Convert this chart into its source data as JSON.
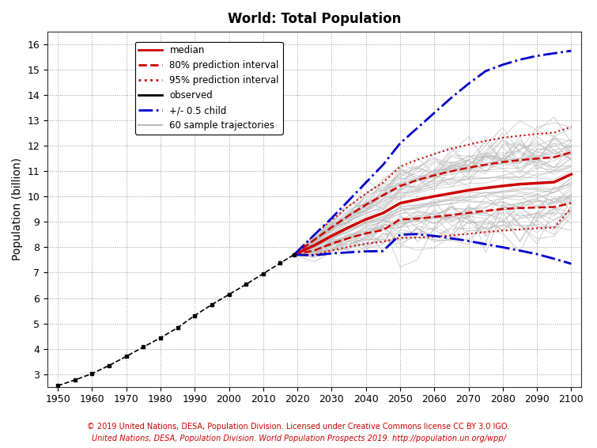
{
  "title": "World: Total Population",
  "ylabel": "Population (billion)",
  "xlim": [
    1947,
    2103
  ],
  "ylim": [
    2.5,
    16.5
  ],
  "yticks": [
    3,
    4,
    5,
    6,
    7,
    8,
    9,
    10,
    11,
    12,
    13,
    14,
    15,
    16
  ],
  "xticks": [
    1950,
    1960,
    1970,
    1980,
    1990,
    2000,
    2010,
    2020,
    2030,
    2040,
    2050,
    2060,
    2070,
    2080,
    2090,
    2100
  ],
  "observed_years": [
    1950,
    1955,
    1960,
    1965,
    1970,
    1975,
    1980,
    1985,
    1990,
    1995,
    2000,
    2005,
    2010,
    2015,
    2019
  ],
  "observed_pop": [
    2.54,
    2.77,
    3.02,
    3.34,
    3.7,
    4.07,
    4.43,
    4.83,
    5.31,
    5.74,
    6.14,
    6.54,
    6.96,
    7.38,
    7.71
  ],
  "proj_years": [
    2019,
    2025,
    2030,
    2035,
    2040,
    2045,
    2050,
    2055,
    2060,
    2065,
    2070,
    2075,
    2080,
    2085,
    2090,
    2095,
    2100
  ],
  "median_pop": [
    7.71,
    8.08,
    8.45,
    8.79,
    9.1,
    9.35,
    9.74,
    9.88,
    10.01,
    10.13,
    10.25,
    10.34,
    10.42,
    10.49,
    10.53,
    10.57,
    10.88
  ],
  "pi80_upper_pop": [
    7.71,
    8.3,
    8.79,
    9.25,
    9.68,
    10.05,
    10.42,
    10.65,
    10.84,
    11.0,
    11.14,
    11.26,
    11.36,
    11.44,
    11.5,
    11.55,
    11.75
  ],
  "pi80_lower_pop": [
    7.71,
    7.88,
    8.14,
    8.36,
    8.55,
    8.68,
    9.1,
    9.13,
    9.2,
    9.27,
    9.36,
    9.44,
    9.51,
    9.55,
    9.57,
    9.59,
    9.74
  ],
  "pi95_upper_pop": [
    7.71,
    8.5,
    9.08,
    9.62,
    10.12,
    10.55,
    11.18,
    11.45,
    11.68,
    11.89,
    12.05,
    12.2,
    12.32,
    12.4,
    12.47,
    12.52,
    12.75
  ],
  "pi95_lower_pop": [
    7.71,
    7.7,
    7.88,
    8.02,
    8.14,
    8.22,
    8.38,
    8.38,
    8.42,
    8.47,
    8.53,
    8.6,
    8.66,
    8.71,
    8.75,
    8.78,
    9.55
  ],
  "hc_upper_pop": [
    7.71,
    8.5,
    9.15,
    9.85,
    10.55,
    11.25,
    12.1,
    12.7,
    13.3,
    13.9,
    14.45,
    14.95,
    15.2,
    15.4,
    15.55,
    15.65,
    15.75
  ],
  "hc_lower_pop": [
    7.71,
    7.68,
    7.76,
    7.8,
    7.84,
    7.85,
    8.5,
    8.52,
    8.45,
    8.35,
    8.25,
    8.12,
    8.0,
    7.87,
    7.73,
    7.55,
    7.35
  ],
  "background_color": "#ffffff",
  "grid_color": "#999999",
  "median_color": "#cc0000",
  "observed_color": "#000000",
  "hc_color": "#0000cc",
  "sample_color": "#bbbbbb",
  "footnote1": "© 2019 United Nations, DESA, Population Division. Licensed under Creative Commons license CC BY 3.0 IGO.",
  "footnote2_plain1": "United Nations, DESA, Population Division. ",
  "footnote2_italic": "World Population Prospects 2019",
  "footnote2_plain2": ". http://population.un.org/wpp/",
  "footnote_color": "#cc0000",
  "n_trajectories": 60
}
